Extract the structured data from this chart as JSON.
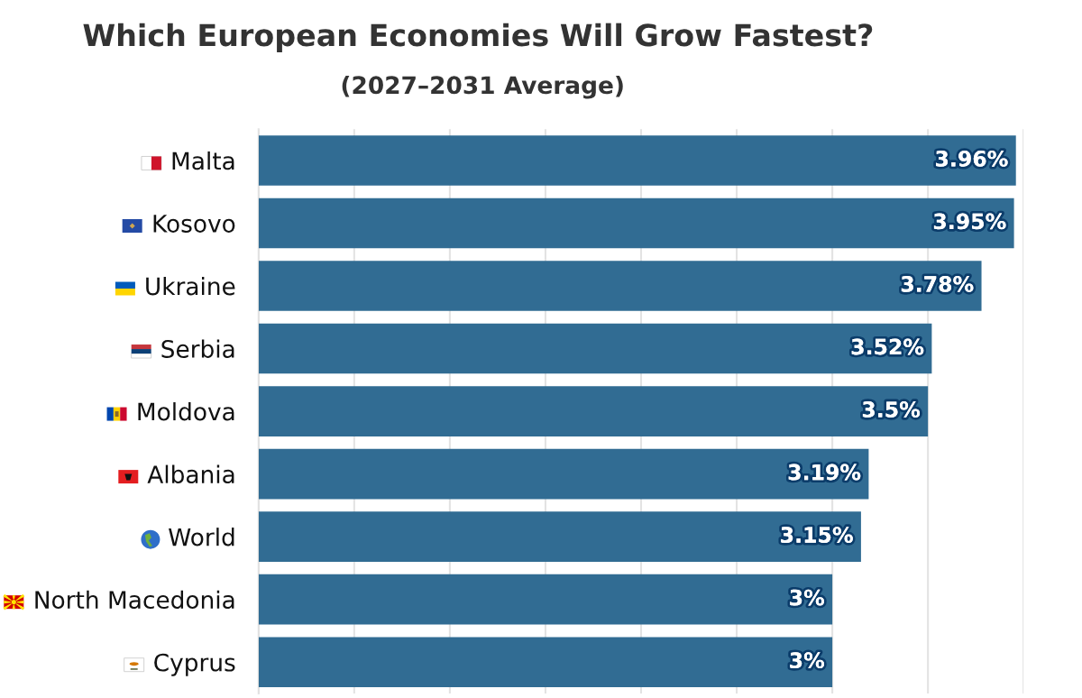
{
  "chart_data": {
    "type": "bar",
    "orientation": "horizontal",
    "title": "Which European Economies Will Grow Fastest?",
    "subtitle": "(2027–2031 Average)",
    "categories": [
      "Malta",
      "Kosovo",
      "Ukraine",
      "Serbia",
      "Moldova",
      "Albania",
      "World",
      "North Macedonia",
      "Cyprus"
    ],
    "values": [
      3.96,
      3.95,
      3.78,
      3.52,
      3.5,
      3.19,
      3.15,
      3,
      3
    ],
    "value_labels": [
      "3.96%",
      "3.95%",
      "3.78%",
      "3.52%",
      "3.5%",
      "3.19%",
      "3.15%",
      "3%",
      "3%"
    ],
    "color": "#316c93",
    "xlim": [
      0,
      4
    ],
    "xticks": [
      {
        "value": 0,
        "label": null
      },
      {
        "value": 0.5,
        "label": null
      },
      {
        "value": 1,
        "label": null
      },
      {
        "value": 1.5,
        "label": null
      },
      {
        "value": 2,
        "label": null
      },
      {
        "value": 2.5,
        "label": null
      },
      {
        "value": 3,
        "label": null
      },
      {
        "value": 3.5,
        "label": null
      },
      {
        "value": 4,
        "label": null
      }
    ],
    "grid": "x",
    "tick_labels": "y"
  }
}
